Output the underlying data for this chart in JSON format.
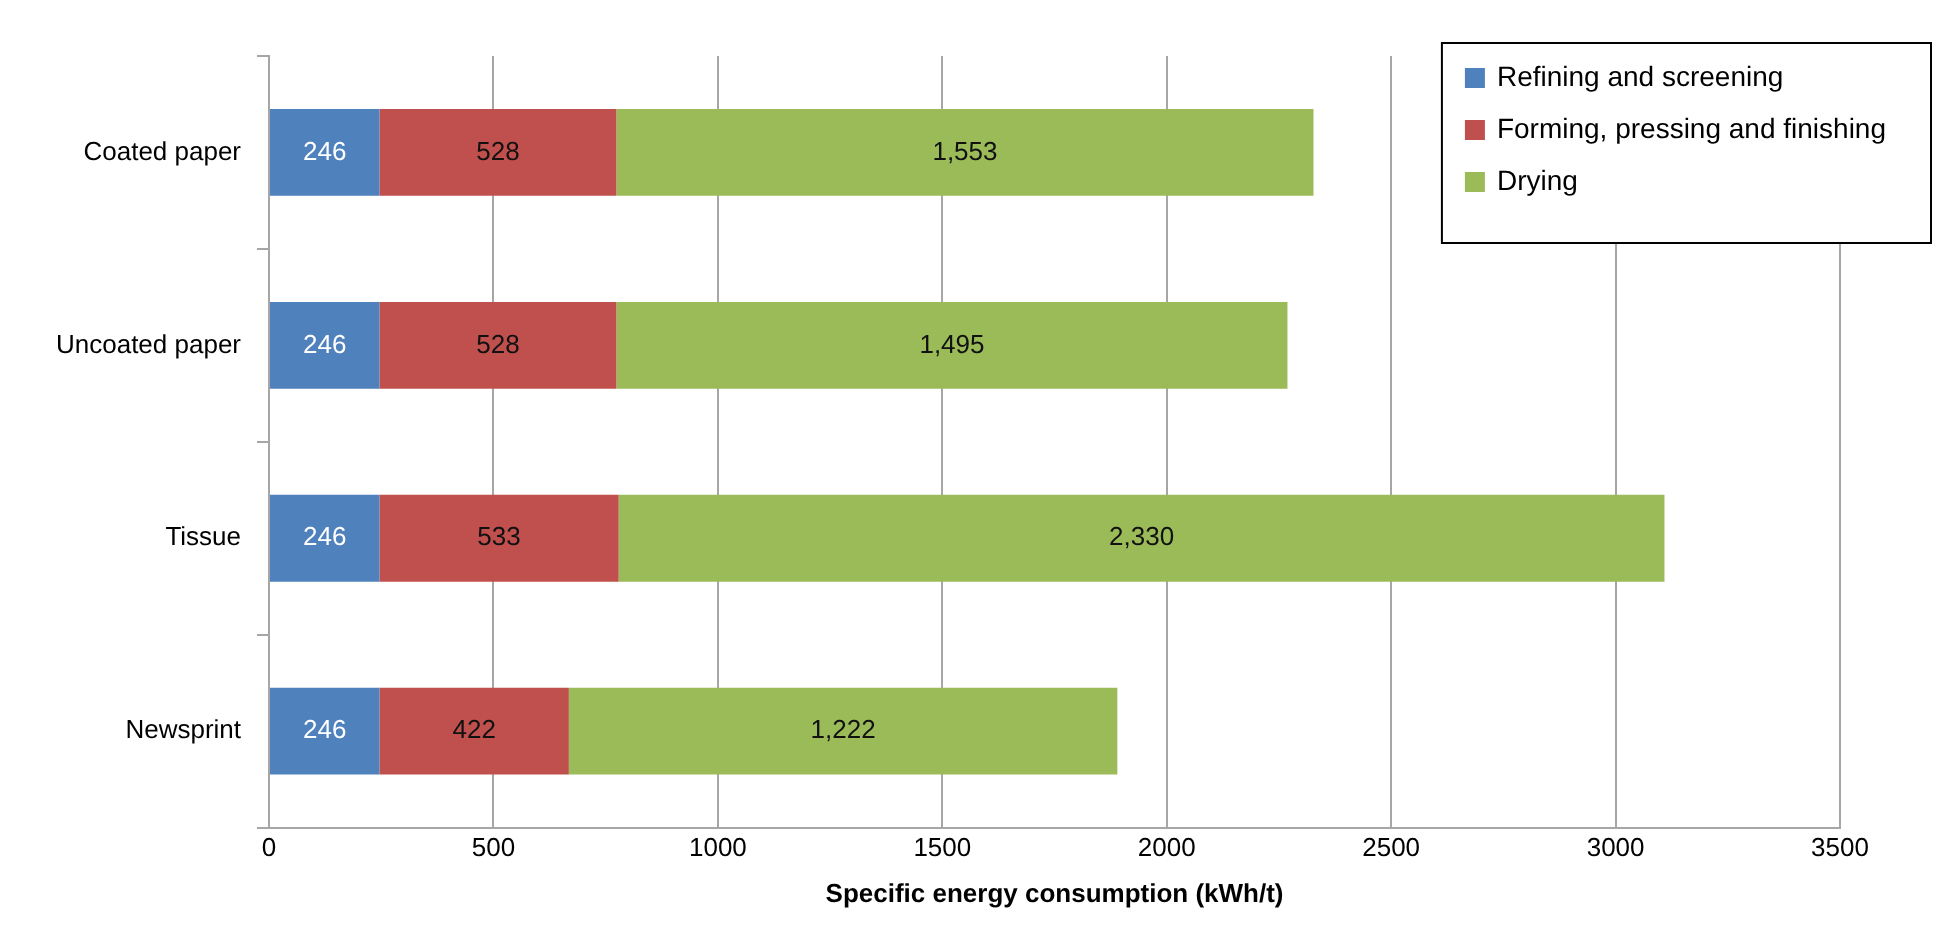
{
  "chart_data": {
    "type": "bar",
    "orientation": "horizontal",
    "stacked": true,
    "categories": [
      "Coated paper",
      "Uncoated paper",
      "Tissue",
      "Newsprint"
    ],
    "series": [
      {
        "name": "Refining and screening",
        "color": "#4f81bd",
        "values": [
          246,
          246,
          246,
          246
        ],
        "value_labels": [
          "246",
          "246",
          "246",
          "246"
        ]
      },
      {
        "name": "Forming, pressing and finishing",
        "color": "#c0504d",
        "values": [
          528,
          528,
          533,
          422
        ],
        "value_labels": [
          "528",
          "528",
          "533",
          "422"
        ]
      },
      {
        "name": "Drying",
        "color": "#9bbb59",
        "values": [
          1553,
          1495,
          2330,
          1222
        ],
        "value_labels": [
          "1,553",
          "1,495",
          "2,330",
          "1,222"
        ]
      }
    ],
    "xlabel": "Specific energy consumption (kWh/t)",
    "xlim": [
      0,
      3500
    ],
    "xticks": [
      0,
      500,
      1000,
      1500,
      2000,
      2500,
      3000,
      3500
    ],
    "grid": "x",
    "legend": "top right"
  }
}
